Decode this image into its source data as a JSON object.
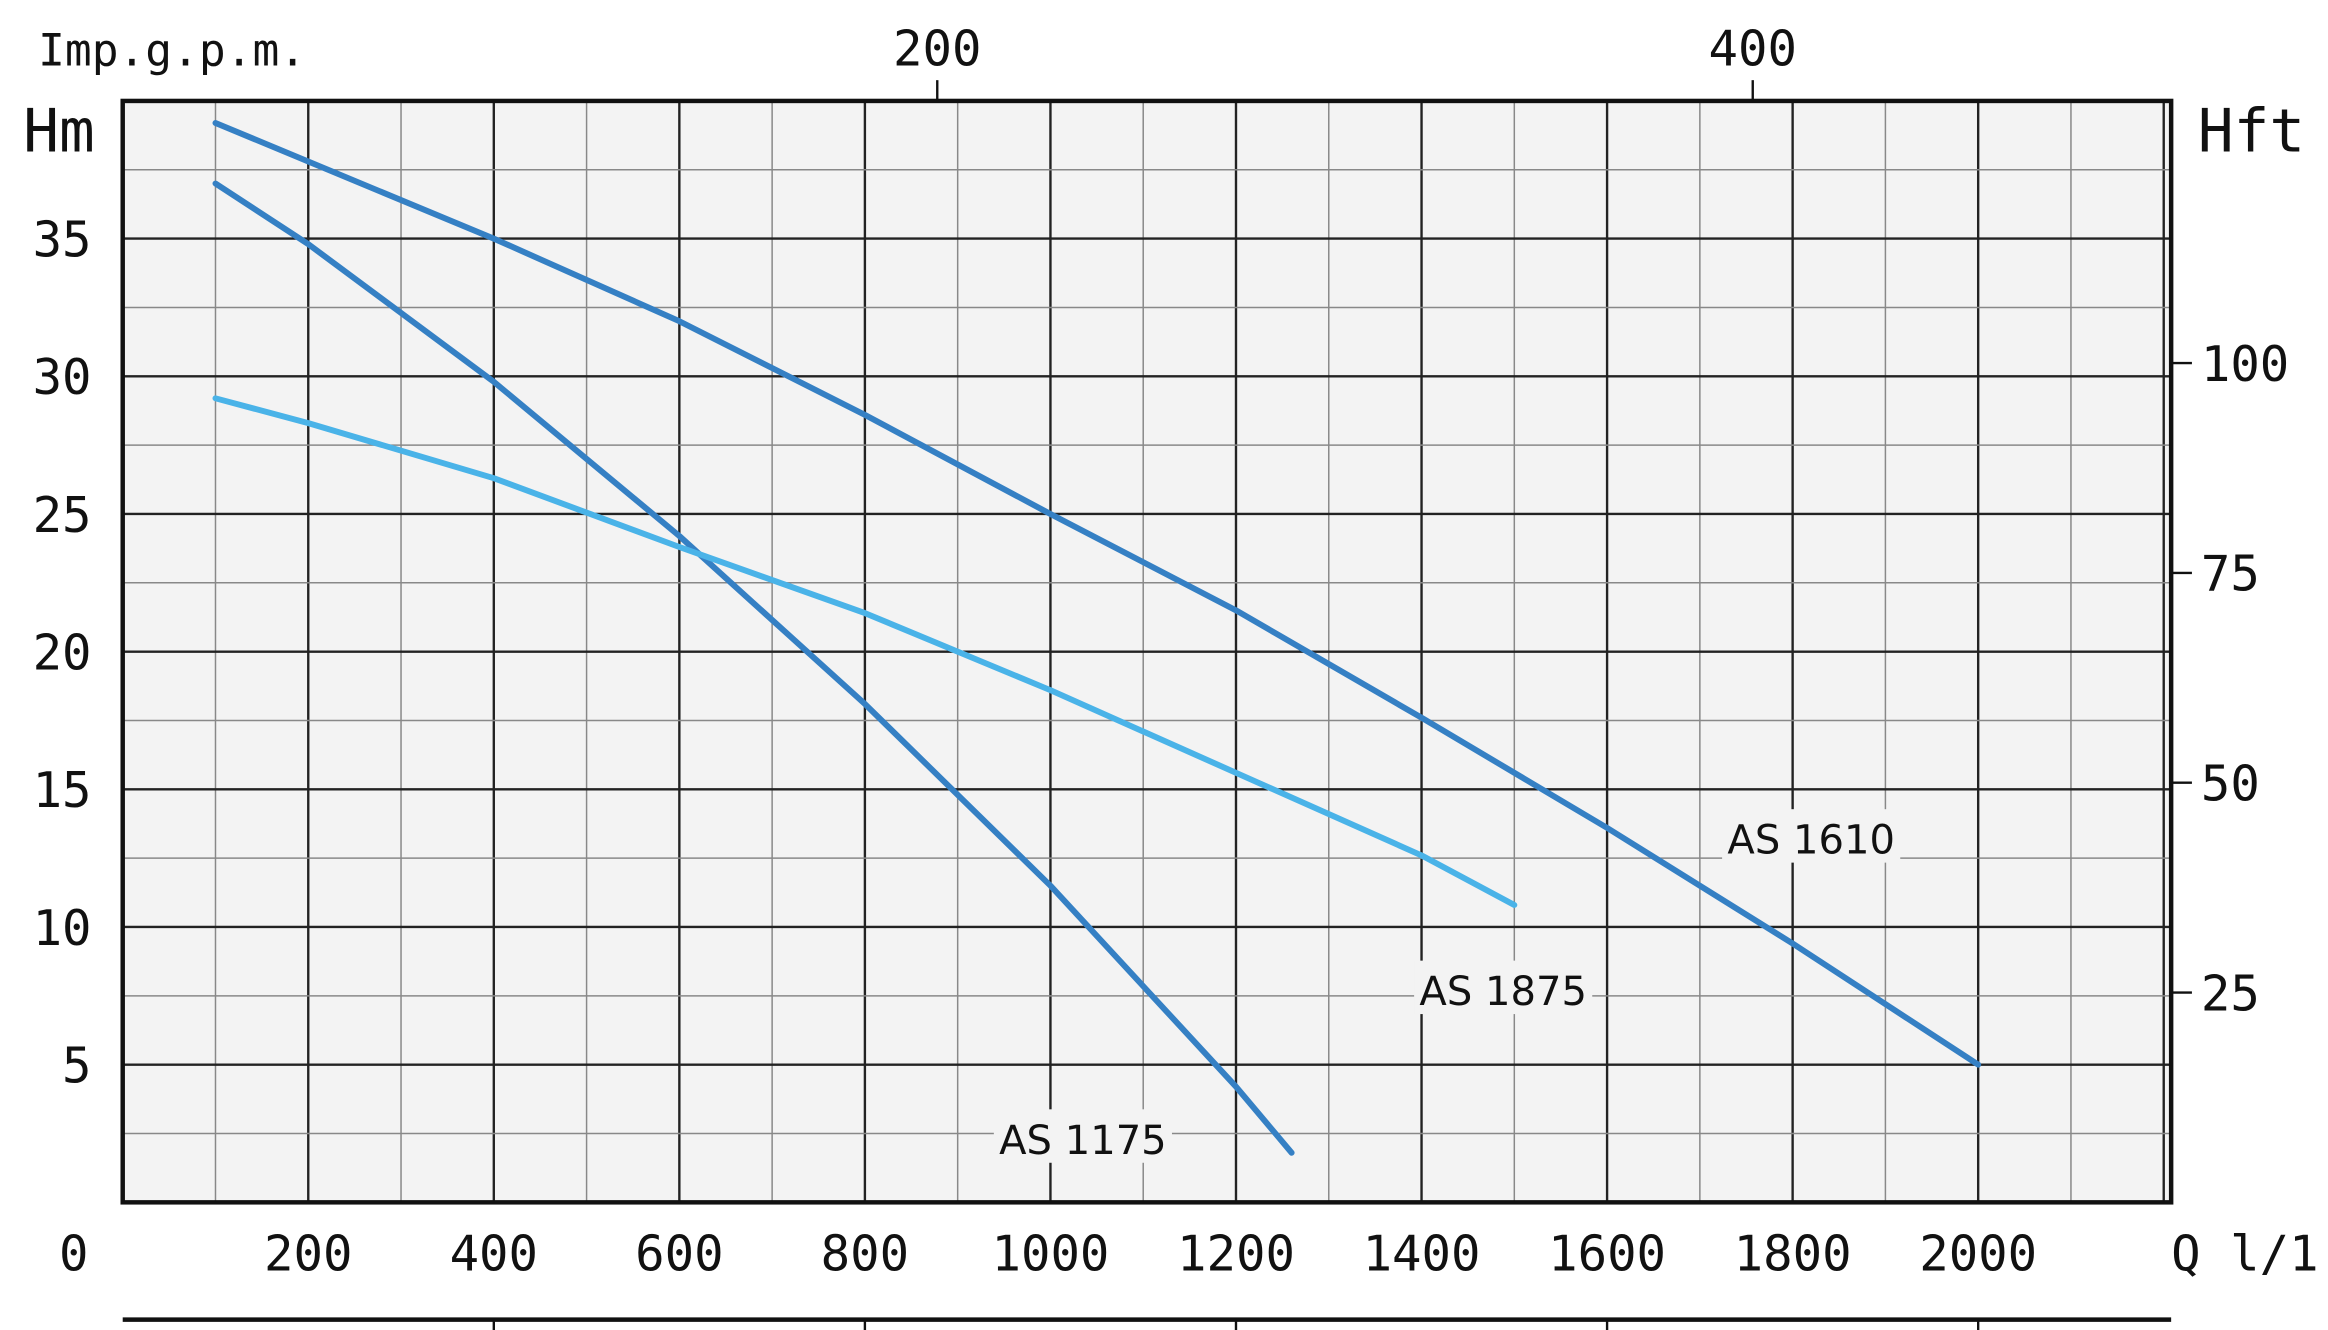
{
  "chart_data": {
    "type": "line",
    "title": "",
    "xlabel": "Q l/1'",
    "ylabel": "Hm",
    "ylabel_right": "Hft",
    "xlabel_top": "Imp.g.p.m.",
    "xlim": [
      0,
      2200
    ],
    "ylim": [
      0,
      40
    ],
    "x_ticks": [
      0,
      200,
      400,
      600,
      800,
      1000,
      1200,
      1400,
      1600,
      1800,
      2000
    ],
    "x_tick_labels": [
      "0",
      "200",
      "400",
      "600",
      "800",
      "1000",
      "1200",
      "1400",
      "1600",
      "1800",
      "2000"
    ],
    "y_ticks": [
      5,
      10,
      15,
      20,
      25,
      30,
      35
    ],
    "y_tick_labels": [
      "5",
      "10",
      "15",
      "20",
      "25",
      "30",
      "35"
    ],
    "right_ticks": [
      {
        "label": "25",
        "ft": 25
      },
      {
        "label": "50",
        "ft": 50
      },
      {
        "label": "75",
        "ft": 75
      },
      {
        "label": "100",
        "ft": 100
      }
    ],
    "top_ticks": [
      {
        "label": "200",
        "q_lpm": 878
      },
      {
        "label": "400",
        "q_lpm": 1757
      }
    ],
    "bottom_secondary_ticks_q_lpm": [
      400,
      800,
      1200,
      1600,
      2000
    ],
    "grid": true,
    "colors": {
      "dark": "#3580c4",
      "light": "#4ab3e8",
      "plot_bg": "#f3f3f3"
    },
    "series": [
      {
        "name": "AS 1610",
        "color": "#3580c4",
        "x": [
          100,
          400,
          600,
          800,
          1000,
          1200,
          1400,
          1600,
          1800,
          2000
        ],
        "y": [
          39.2,
          35.0,
          32.0,
          28.6,
          25.0,
          21.5,
          17.6,
          13.6,
          9.4,
          5.0
        ],
        "label_at": [
          1820,
          13.2
        ]
      },
      {
        "name": "AS 1175",
        "color": "#3580c4",
        "x": [
          100,
          200,
          400,
          600,
          800,
          1000,
          1200,
          1260
        ],
        "y": [
          37.0,
          34.8,
          29.8,
          24.2,
          18.1,
          11.5,
          4.2,
          1.8
        ],
        "label_at": [
          1035,
          2.3
        ]
      },
      {
        "name": "AS 1875",
        "color": "#4ab3e8",
        "x": [
          100,
          200,
          400,
          600,
          800,
          1000,
          1200,
          1400,
          1500
        ],
        "y": [
          29.2,
          28.3,
          26.3,
          23.8,
          21.4,
          18.6,
          15.6,
          12.6,
          10.8
        ],
        "label_at": [
          1488,
          7.7
        ]
      }
    ]
  }
}
